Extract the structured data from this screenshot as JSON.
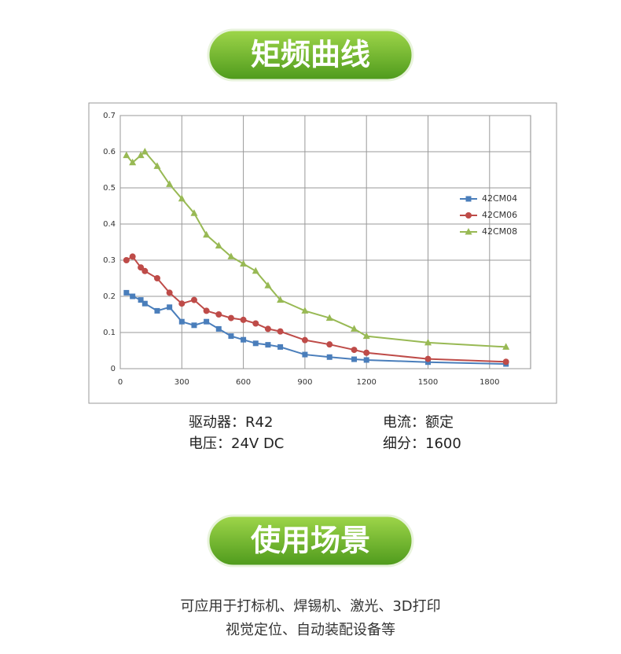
{
  "headers": [
    "矩频曲线",
    "使用场景"
  ],
  "chart_data": {
    "type": "line",
    "x": [
      30,
      60,
      100,
      120,
      180,
      240,
      300,
      360,
      420,
      480,
      540,
      600,
      660,
      720,
      780,
      900,
      1020,
      1140,
      1200,
      1500,
      1880
    ],
    "series": [
      {
        "name": "42CM04",
        "color": "#4a7ebb",
        "marker": "square",
        "values": [
          0.21,
          0.2,
          0.19,
          0.18,
          0.16,
          0.17,
          0.13,
          0.12,
          0.13,
          0.11,
          0.09,
          0.08,
          0.07,
          0.066,
          0.06,
          0.039,
          0.032,
          0.026,
          0.024,
          0.018,
          0.013
        ]
      },
      {
        "name": "42CM06",
        "color": "#be4b48",
        "marker": "circle",
        "values": [
          0.3,
          0.31,
          0.28,
          0.27,
          0.25,
          0.21,
          0.18,
          0.19,
          0.16,
          0.15,
          0.14,
          0.135,
          0.125,
          0.11,
          0.103,
          0.079,
          0.067,
          0.052,
          0.044,
          0.027,
          0.019
        ]
      },
      {
        "name": "42CM08",
        "color": "#98b954",
        "marker": "triangle",
        "values": [
          0.59,
          0.57,
          0.59,
          0.6,
          0.56,
          0.51,
          0.47,
          0.43,
          0.37,
          0.34,
          0.31,
          0.29,
          0.27,
          0.23,
          0.19,
          0.16,
          0.14,
          0.11,
          0.09,
          0.072,
          0.06
        ]
      }
    ],
    "xlim": [
      0,
      2000
    ],
    "xticks": [
      0,
      300,
      600,
      900,
      1200,
      1500,
      1800
    ],
    "ylim": [
      0,
      0.7
    ],
    "yticks": [
      0,
      0.1,
      0.2,
      0.3,
      0.4,
      0.5,
      0.6,
      0.7
    ],
    "grid": true,
    "legend": "right"
  },
  "specs": [
    [
      "驱动器：R42",
      "电流：额定"
    ],
    [
      "电压：24V DC",
      "细分：1600"
    ]
  ],
  "description": [
    "可应用于打标机、焊锡机、激光、3D打印",
    "视觉定位、自动装配设备等"
  ]
}
